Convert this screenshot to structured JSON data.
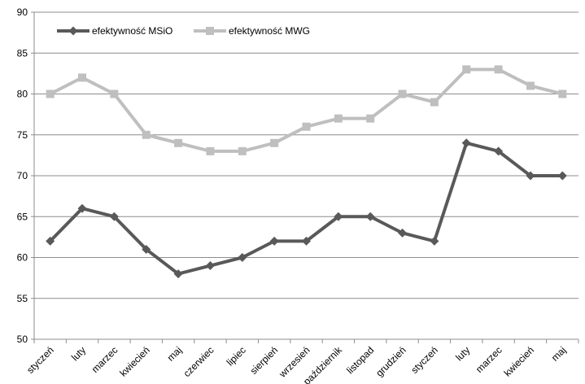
{
  "chart_data": {
    "type": "line",
    "title": "",
    "xlabel": "",
    "ylabel": "",
    "categories": [
      "styczeń",
      "luty",
      "marzec",
      "kwiecień",
      "maj",
      "czerwiec",
      "lipiec",
      "sierpień",
      "wrzesień",
      "październik",
      "listopad",
      "grudzień",
      "styczeń",
      "luty",
      "marzec",
      "kwiecień",
      "maj"
    ],
    "ylim": [
      50,
      90
    ],
    "yticks": [
      "50",
      "55",
      "60",
      "65",
      "70",
      "75",
      "80",
      "85",
      "90"
    ],
    "grid": "horizontal",
    "legend_position": "top-left",
    "series": [
      {
        "name": "efektywność MSiO",
        "color": "#595959",
        "marker": "diamond",
        "values": [
          62,
          66,
          65,
          61,
          58,
          59,
          60,
          62,
          62,
          65,
          65,
          63,
          62,
          74,
          73,
          70,
          70
        ]
      },
      {
        "name": "efektywność MWG",
        "color": "#bfbfbf",
        "marker": "square",
        "values": [
          80,
          82,
          80,
          75,
          74,
          73,
          73,
          74,
          76,
          77,
          77,
          80,
          79,
          83,
          83,
          81,
          80
        ]
      }
    ]
  }
}
